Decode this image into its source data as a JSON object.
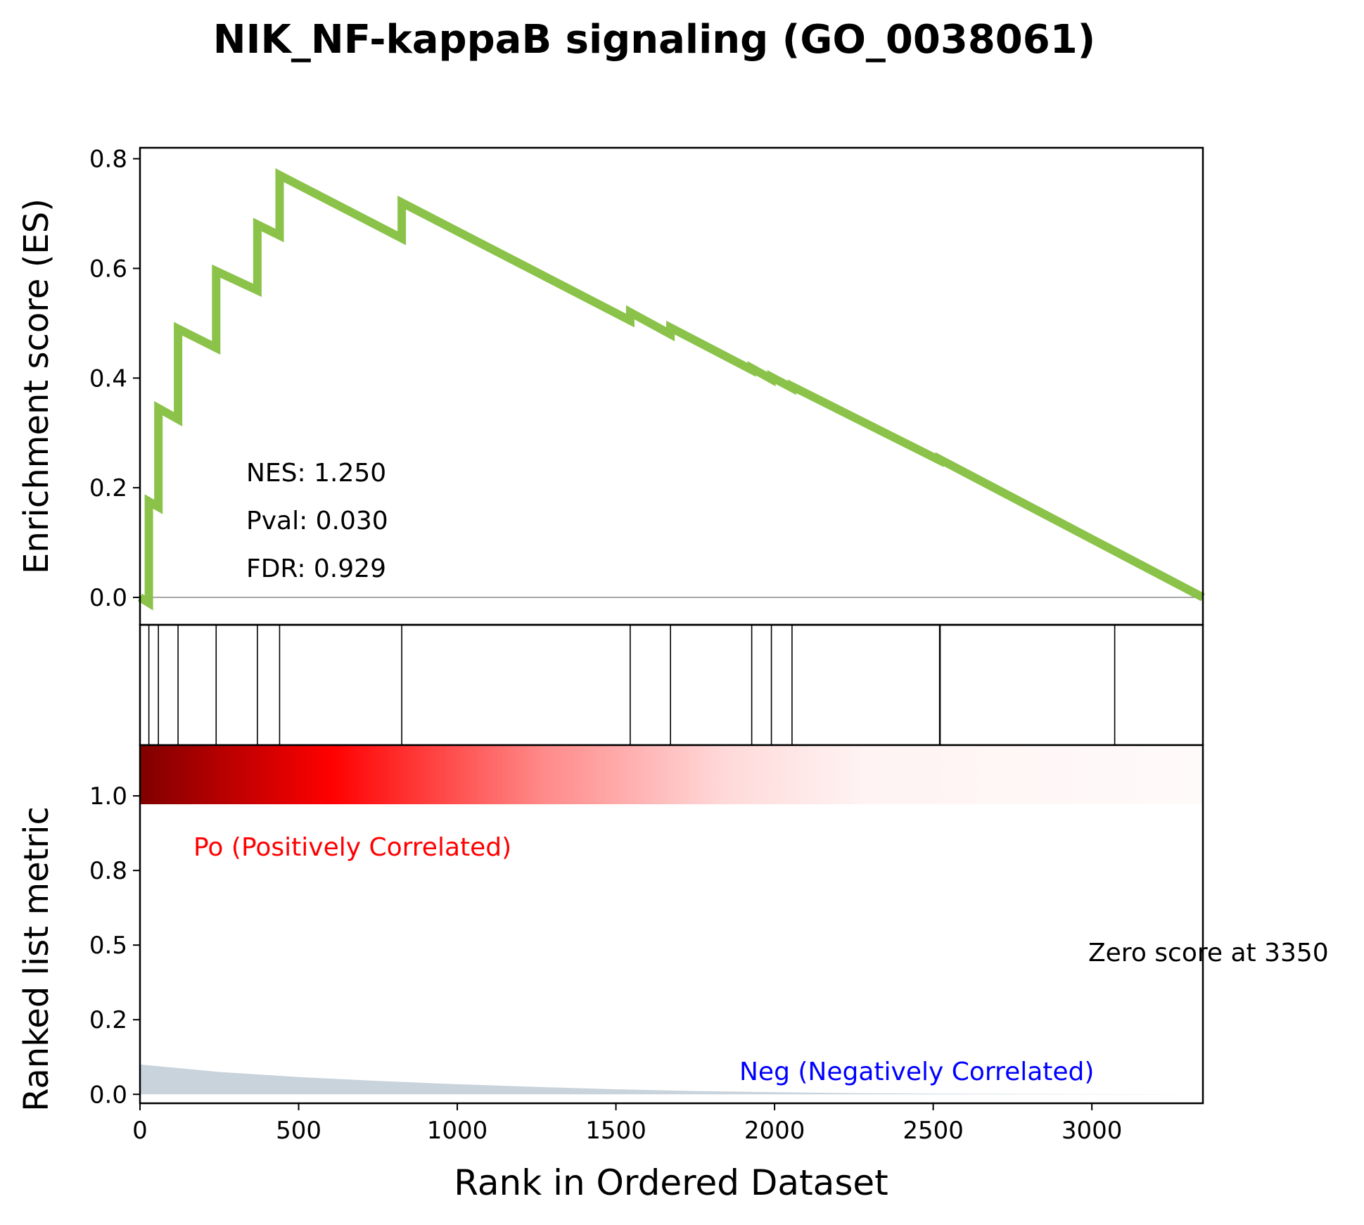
{
  "chart_data": {
    "type": "line",
    "title": "NIK_NF-kappaB signaling (GO_0038061)",
    "x_axis": {
      "label": "Rank in Ordered Dataset",
      "range": [
        0,
        3350
      ],
      "ticks": [
        0,
        500,
        1000,
        1500,
        2000,
        2500,
        3000
      ],
      "tick_labels": [
        "0",
        "500",
        "1000",
        "1500",
        "2000",
        "2500",
        "3000"
      ]
    },
    "es_panel": {
      "ylabel": "Enrichment score (ES)",
      "ylim": [
        -0.05,
        0.82
      ],
      "ticks": [
        0.0,
        0.2,
        0.4,
        0.6,
        0.8
      ],
      "tick_labels": [
        "0.0",
        "0.2",
        "0.4",
        "0.6",
        "0.8"
      ],
      "line_color": "#8bc34a",
      "series": {
        "name": "",
        "x": [
          0,
          28,
          28,
          58,
          58,
          120,
          120,
          240,
          240,
          370,
          370,
          440,
          440,
          825,
          825,
          1545,
          1545,
          1672,
          1672,
          1928,
          1928,
          1990,
          1990,
          2055,
          2055,
          2520,
          2520,
          3350
        ],
        "y": [
          0.0,
          -0.01,
          0.175,
          0.165,
          0.345,
          0.325,
          0.49,
          0.455,
          0.595,
          0.56,
          0.68,
          0.66,
          0.77,
          0.655,
          0.72,
          0.505,
          0.52,
          0.48,
          0.492,
          0.415,
          0.418,
          0.398,
          0.402,
          0.382,
          0.385,
          0.25,
          0.252,
          0.0
        ]
      },
      "annotations": [
        "NES: 1.250",
        "Pval: 0.030",
        "FDR: 0.929"
      ]
    },
    "hits": [
      28,
      58,
      120,
      240,
      370,
      440,
      825,
      1545,
      1672,
      1928,
      1990,
      2055,
      2520,
      2522,
      3072
    ],
    "heatmap": {
      "colors": [
        "#800000",
        "#ff0000",
        "#ffffff"
      ],
      "description_label": ""
    },
    "metric_panel": {
      "ylabel": "Ranked list metric",
      "ylim": [
        -0.03,
        1.17
      ],
      "ticks": [
        0.0,
        0.25,
        0.5,
        0.75,
        1.0
      ],
      "tick_labels": [
        "0.0",
        "0.2",
        "0.5",
        "0.8",
        "1.0"
      ],
      "fill_color": "#c8d3dc",
      "series": {
        "x": [
          0,
          100,
          250,
          500,
          750,
          1000,
          1250,
          1500,
          1750,
          2000,
          2250,
          2500,
          3350
        ],
        "y": [
          0.1,
          0.09,
          0.075,
          0.058,
          0.045,
          0.034,
          0.025,
          0.017,
          0.011,
          0.007,
          0.004,
          0.002,
          0.0
        ]
      },
      "pos_label": "Po (Positively Correlated)",
      "pos_color": "#ff0000",
      "neg_label": "Neg (Negatively Correlated)",
      "neg_color": "#0000ff",
      "zero_label": "Zero score at 3350"
    }
  }
}
